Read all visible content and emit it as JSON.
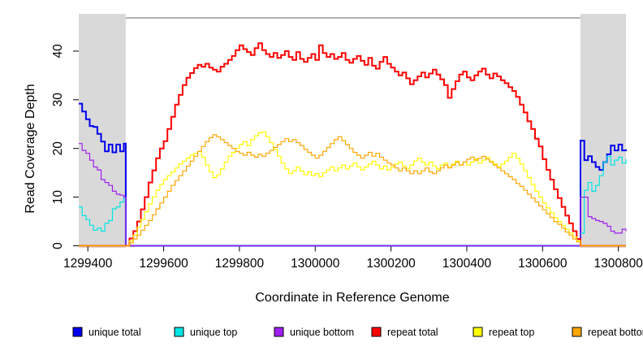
{
  "chart_data": {
    "type": "line",
    "title": "",
    "xlabel": "Coordinate in Reference Genome",
    "ylabel": "Read Coverage Depth",
    "xlim": [
      1299376,
      1300820
    ],
    "ylim": [
      0,
      46.8
    ],
    "grid": false,
    "background_color": "#ffffff",
    "box_color": "#666666",
    "axis_color": "#000000",
    "x_ticks": {
      "values": [
        1299400,
        1299600,
        1299800,
        1300000,
        1300200,
        1300400,
        1300600,
        1300800
      ],
      "labels": [
        "1299400",
        "1299600",
        "1299800",
        "1300000",
        "1300200",
        "1300400",
        "1300600",
        "1300800"
      ]
    },
    "y_ticks": {
      "values": [
        0,
        10,
        20,
        30,
        40
      ],
      "labels": [
        "0",
        "10",
        "20",
        "30",
        "40"
      ]
    },
    "shaded_regions": [
      {
        "name": "left-flank-region",
        "x0": 1299376,
        "x1": 1299500,
        "color": "#d9d9d9"
      },
      {
        "name": "right-flank-region",
        "x0": 1300700,
        "x1": 1300820,
        "color": "#d9d9d9"
      }
    ],
    "legend_position": "bottom",
    "series": [
      {
        "name": "unique total",
        "color": "#0000EE",
        "width": 2,
        "x": [
          1299376,
          1299385,
          1299395,
          1299405,
          1299415,
          1299425,
          1299435,
          1299445,
          1299455,
          1299465,
          1299475,
          1299485,
          1299495,
          1299500,
          1300700,
          1300710,
          1300720,
          1300730,
          1300740,
          1300750,
          1300760,
          1300770,
          1300780,
          1300790,
          1300800,
          1300810,
          1300820
        ],
        "y": [
          29.2,
          27.6,
          26,
          24.6,
          24.4,
          23,
          21.4,
          19.4,
          20.8,
          19.2,
          20.8,
          19.4,
          21,
          0,
          21.6,
          17.6,
          18.4,
          17.2,
          16.2,
          15.6,
          17.2,
          18.8,
          20.6,
          19.6,
          20.8,
          19.6,
          19.8
        ]
      },
      {
        "name": "unique top",
        "color": "#00E5E5",
        "width": 1.2,
        "x": [
          1299376,
          1299385,
          1299395,
          1299405,
          1299415,
          1299425,
          1299435,
          1299445,
          1299455,
          1299465,
          1299475,
          1299485,
          1299495,
          1299500,
          1300700,
          1300710,
          1300720,
          1300730,
          1300740,
          1300750,
          1300760,
          1300770,
          1300780,
          1300790,
          1300800,
          1300810,
          1300820
        ],
        "y": [
          8,
          6.2,
          5.4,
          4.2,
          3.2,
          3.6,
          3,
          4.6,
          5.2,
          7.6,
          8,
          9,
          9.8,
          0,
          2.6,
          11.4,
          13,
          11.2,
          12.4,
          14.4,
          17.2,
          18.4,
          16.6,
          17.6,
          18.2,
          17,
          17.8
        ]
      },
      {
        "name": "unique bottom",
        "color": "#A020F0",
        "width": 1.2,
        "x": [
          1299376,
          1299385,
          1299395,
          1299405,
          1299415,
          1299425,
          1299435,
          1299445,
          1299455,
          1299465,
          1299475,
          1299485,
          1299495,
          1299500,
          1300700,
          1300710,
          1300720,
          1300730,
          1300740,
          1300750,
          1300760,
          1300770,
          1300780,
          1300790,
          1300800,
          1300810,
          1300820
        ],
        "y": [
          21,
          19.6,
          19,
          17.6,
          16.2,
          15.6,
          13.6,
          13,
          12.4,
          11.2,
          10.6,
          10.4,
          10,
          0,
          10,
          10,
          6,
          5.6,
          5.2,
          5,
          4.6,
          4,
          3,
          2.6,
          2.6,
          3.4,
          3
        ]
      },
      {
        "name": "repeat total",
        "color": "#FF0000",
        "width": 2,
        "x_start": 1299500,
        "x_step": 10,
        "lead_zero_from": 1299376,
        "y": [
          0,
          1.5,
          3,
          5,
          7.5,
          10,
          13,
          15.5,
          18,
          20,
          21.5,
          24,
          26.5,
          29,
          31,
          33,
          34.5,
          35.5,
          36.5,
          37.2,
          36.8,
          37.4,
          36.6,
          36.2,
          35.8,
          36.8,
          37.4,
          38.2,
          39,
          40.2,
          41.2,
          40.4,
          39.8,
          39.2,
          40.6,
          41.6,
          40.2,
          39.4,
          38.8,
          39.6,
          38.6,
          39.2,
          40,
          38.8,
          38.2,
          39.8,
          38.4,
          37.8,
          38.6,
          39.4,
          38.2,
          41.2,
          39.6,
          38.8,
          39.4,
          38.4,
          38.8,
          39.6,
          38.2,
          37.6,
          38.4,
          39,
          38,
          37.2,
          38.6,
          37,
          36.4,
          37.8,
          38.8,
          37.4,
          36.6,
          35.8,
          35,
          35.6,
          34.4,
          33.2,
          34,
          34.8,
          35.6,
          34.6,
          35.4,
          36.2,
          35.2,
          34.2,
          33,
          30.4,
          32.2,
          33.8,
          35.2,
          35.8,
          34.6,
          34,
          35,
          35.8,
          36.4,
          35.2,
          34.4,
          35.4,
          34.8,
          34,
          33.4,
          32.6,
          31.8,
          30.6,
          29,
          27.4,
          25.6,
          24,
          22,
          20.4,
          17.8,
          15.6,
          13.6,
          11.6,
          9.8,
          8,
          6.2,
          4.6,
          3,
          1.4,
          0
        ]
      },
      {
        "name": "repeat top",
        "color": "#FFFF00",
        "width": 1.2,
        "x_start": 1299500,
        "x_step": 10,
        "lead_zero_from": 1299376,
        "y": [
          0,
          1,
          2.2,
          3.8,
          5.4,
          7,
          8.6,
          10,
          11.4,
          12.6,
          13.6,
          14.4,
          15.2,
          16,
          16.8,
          17.4,
          18,
          18.6,
          19,
          19.4,
          18.2,
          16.6,
          15.2,
          14,
          14.6,
          15.8,
          17.2,
          18.4,
          19.2,
          20,
          20.8,
          21.4,
          20.6,
          21.8,
          22.6,
          23.2,
          23.4,
          22.4,
          21.2,
          19.8,
          18.4,
          17,
          15.8,
          14.8,
          15.4,
          16.2,
          15.4,
          14.6,
          15.2,
          14.4,
          14.8,
          14.2,
          15,
          15.6,
          16.2,
          15.4,
          16,
          16.6,
          15.8,
          16.4,
          17,
          16.2,
          15.6,
          16.2,
          16.8,
          17.4,
          16.6,
          15.8,
          16.4,
          15.6,
          16.2,
          16.8,
          17.2,
          16.4,
          15.8,
          16.6,
          17.4,
          18,
          17.2,
          16.6,
          17.2,
          16.4,
          15.8,
          16.6,
          17,
          16.2,
          16.8,
          17.4,
          16.6,
          17.2,
          16.6,
          17.2,
          17.8,
          17,
          17.6,
          18.2,
          17.4,
          16.8,
          16.2,
          16.8,
          17.4,
          18.2,
          19,
          18,
          16.8,
          15.4,
          14,
          12.6,
          11.2,
          10,
          8.8,
          7.8,
          6.8,
          5.8,
          5,
          4.2,
          3.4,
          2.6,
          1.8,
          1,
          0
        ]
      },
      {
        "name": "repeat bottom",
        "color": "#FFA500",
        "width": 1.2,
        "x_start": 1299500,
        "x_step": 10,
        "lead_zero_from": 1299376,
        "y": [
          0,
          0.6,
          1.4,
          2.2,
          3.2,
          4.2,
          5.2,
          6.4,
          7.6,
          8.8,
          10,
          11.2,
          12.4,
          13.4,
          14.4,
          15.4,
          16.4,
          17.4,
          18.4,
          19.4,
          20.4,
          21.4,
          22.2,
          22.8,
          22.4,
          21.8,
          21.2,
          20.6,
          20,
          19.4,
          19,
          18.6,
          19.2,
          18.6,
          18.2,
          18.8,
          18.4,
          19,
          19.6,
          20.2,
          20.8,
          21.4,
          22,
          21.4,
          21.8,
          21.2,
          20.6,
          19.8,
          19.2,
          18.6,
          18,
          18.6,
          19.4,
          20.2,
          21,
          21.8,
          22.4,
          21.6,
          20.8,
          20,
          19.2,
          18.6,
          18,
          18.6,
          19.2,
          18.4,
          19,
          18.2,
          17.6,
          17,
          16.6,
          16,
          15.4,
          16,
          15.4,
          14.8,
          15.4,
          14.8,
          15.4,
          16,
          15.2,
          14.8,
          15.4,
          16,
          16.6,
          16,
          16.6,
          17.2,
          16.6,
          17.2,
          17.8,
          18.2,
          17.6,
          18,
          18.4,
          17.8,
          17.2,
          16.6,
          16,
          15.4,
          14.8,
          14.2,
          13.6,
          12.8,
          12.2,
          11.4,
          10.6,
          9.8,
          9,
          8.2,
          7.4,
          6.6,
          5.8,
          5,
          4.4,
          3.6,
          2.8,
          2.2,
          1.4,
          0.8,
          0
        ]
      }
    ]
  }
}
